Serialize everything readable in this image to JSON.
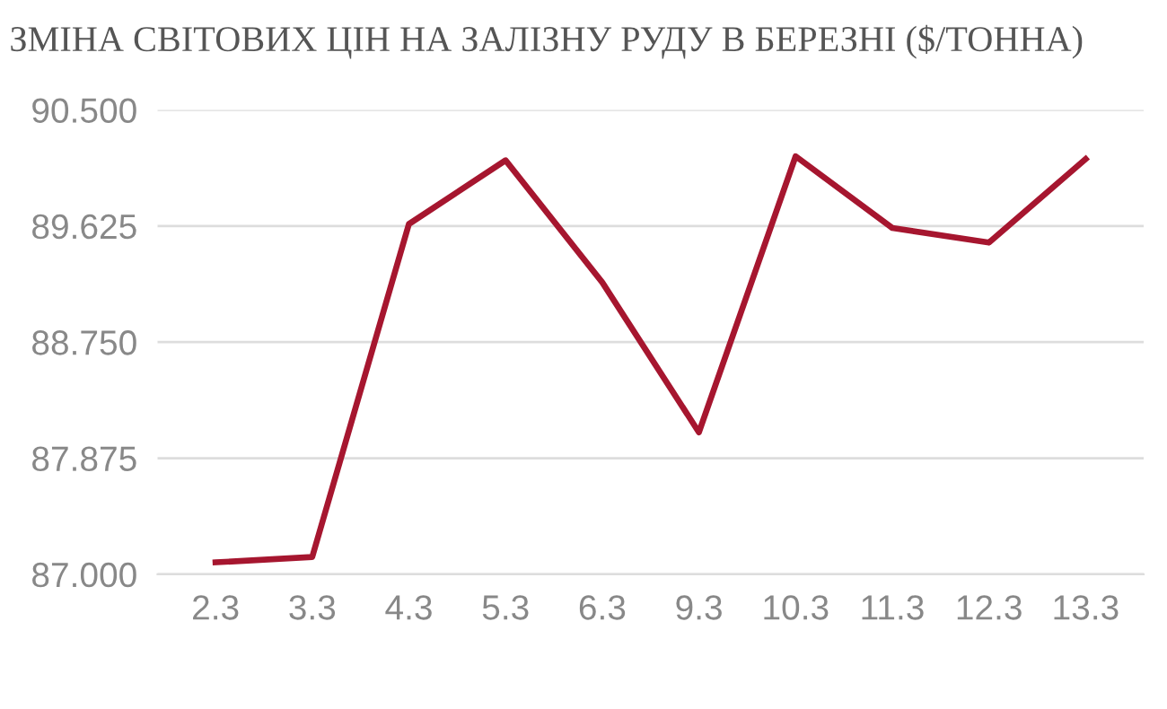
{
  "chart_data": {
    "type": "line",
    "title": "ЗМІНА СВІТОВИХ ЦІН НА ЗАЛІЗНУ РУДУ В БЕРЕЗНІ ($/ТОННА)",
    "categories": [
      "2.3",
      "3.3",
      "4.3",
      "5.3",
      "6.3",
      "9.3",
      "10.3",
      "11.3",
      "12.3",
      "13.3"
    ],
    "series": [
      {
        "color": "#a6162f",
        "values": [
          87.09,
          87.13,
          89.64,
          90.12,
          89.2,
          88.07,
          90.15,
          89.61,
          89.5,
          90.13
        ]
      }
    ],
    "ylim": [
      87.0,
      90.5
    ],
    "yticks": [
      {
        "value": 87.0,
        "label": "87.000"
      },
      {
        "value": 87.875,
        "label": "87.875"
      },
      {
        "value": 88.75,
        "label": "88.750"
      },
      {
        "value": 89.625,
        "label": "89.625"
      },
      {
        "value": 90.5,
        "label": "90.500"
      }
    ],
    "grid": "y",
    "marker": "none",
    "line_style": "solid"
  }
}
